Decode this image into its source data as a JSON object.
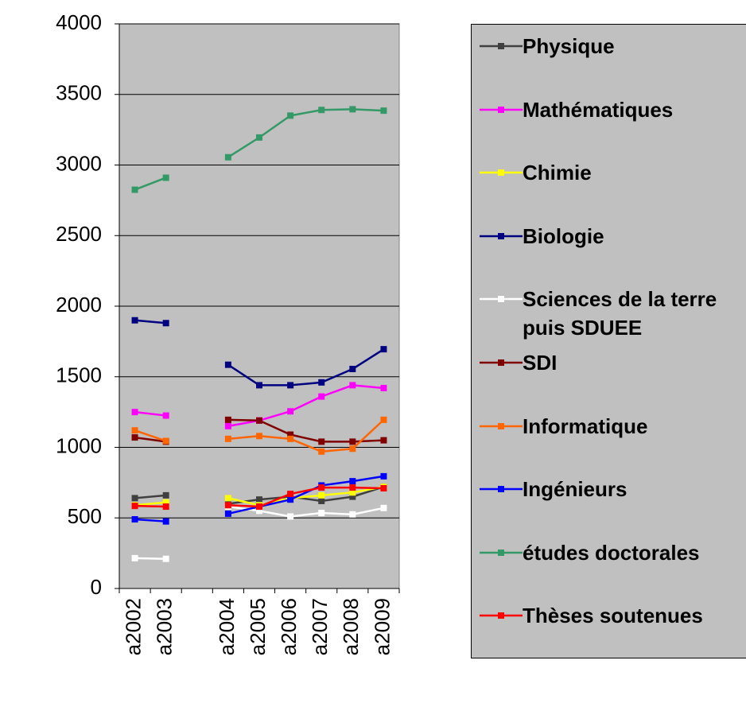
{
  "chart_data": {
    "type": "line",
    "categories": [
      "a2002",
      "a2003",
      null,
      "a2004",
      "a2005",
      "a2006",
      "a2007",
      "a2008",
      "a2009"
    ],
    "ylim": [
      0,
      4000
    ],
    "yticks": [
      0,
      500,
      1000,
      1500,
      2000,
      2500,
      3000,
      3500,
      4000
    ],
    "grid": true,
    "series": [
      {
        "name": "Physique",
        "color": "#404040",
        "values": [
          640,
          660,
          null,
          600,
          630,
          650,
          620,
          650,
          720
        ]
      },
      {
        "name": "Mathématiques",
        "color": "#ff00ff",
        "values": [
          1250,
          1225,
          null,
          1150,
          1190,
          1255,
          1360,
          1440,
          1420
        ]
      },
      {
        "name": "Chimie",
        "color": "#ffff00",
        "values": [
          590,
          610,
          null,
          640,
          590,
          640,
          660,
          680,
          720
        ]
      },
      {
        "name": "Biologie",
        "color": "#000080",
        "values": [
          1900,
          1880,
          null,
          1585,
          1440,
          1440,
          1460,
          1555,
          1695
        ]
      },
      {
        "name": "Sciences de la terre puis SDUEE",
        "color": "#ffffff",
        "values": [
          215,
          210,
          null,
          580,
          550,
          510,
          535,
          525,
          570
        ]
      },
      {
        "name": "SDI",
        "color": "#800000",
        "values": [
          1070,
          1040,
          null,
          1195,
          1190,
          1090,
          1040,
          1040,
          1050
        ]
      },
      {
        "name": "Informatique",
        "color": "#ff6600",
        "values": [
          1120,
          1045,
          null,
          1060,
          1080,
          1060,
          970,
          990,
          1195
        ]
      },
      {
        "name": "Ingénieurs",
        "color": "#0000ff",
        "values": [
          490,
          475,
          null,
          530,
          580,
          630,
          730,
          760,
          795
        ]
      },
      {
        "name": "études doctorales",
        "color": "#339966",
        "values": [
          2825,
          2910,
          null,
          3055,
          3195,
          3350,
          3390,
          3395,
          3385
        ]
      },
      {
        "name": "Thèses soutenues",
        "color": "#ff0000",
        "values": [
          585,
          580,
          null,
          590,
          580,
          670,
          715,
          715,
          710
        ]
      }
    ]
  }
}
